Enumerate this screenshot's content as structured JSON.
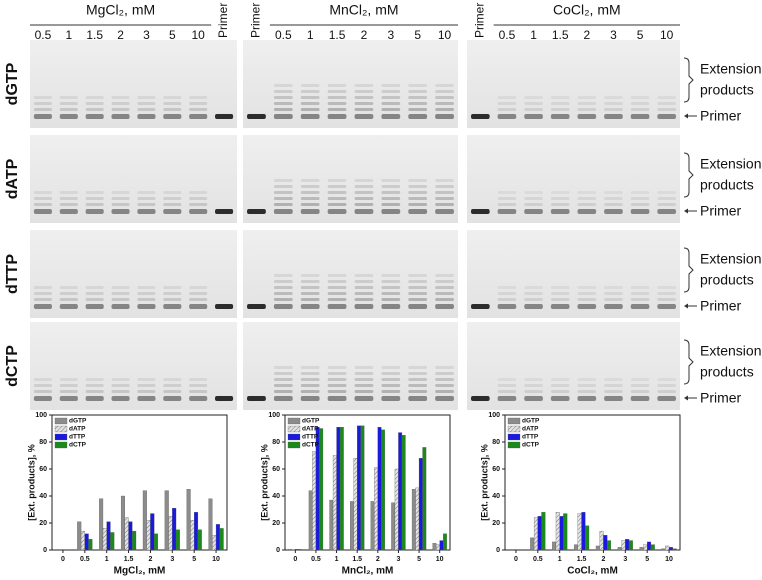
{
  "gels": {
    "columns": [
      {
        "title": "MgCl₂, mM",
        "lanes": [
          "0.5",
          "1",
          "1.5",
          "2",
          "3",
          "5",
          "10",
          "Primer"
        ]
      },
      {
        "title": "MnCl₂, mM",
        "lanes": [
          "Primer",
          "0.5",
          "1",
          "1.5",
          "2",
          "3",
          "5",
          "10"
        ]
      },
      {
        "title": "CoCl₂, mM",
        "lanes": [
          "Primer",
          "0.5",
          "1",
          "1.5",
          "2",
          "3",
          "5",
          "10"
        ]
      }
    ],
    "rows": [
      "dGTP",
      "dATP",
      "dTTP",
      "dCTP"
    ],
    "extension_label": [
      "Extension",
      "products"
    ],
    "primer_label": "Primer"
  },
  "chart_data": [
    {
      "type": "bar",
      "xlabel": "MgCl₂, mM",
      "ylabel": "[Ext. products], %",
      "categories": [
        "0",
        "0.5",
        "1",
        "1.5",
        "2",
        "3",
        "5",
        "10"
      ],
      "ylim": [
        0,
        100
      ],
      "yticks": [
        0,
        20,
        40,
        60,
        80,
        100
      ],
      "series": [
        {
          "name": "dGTP",
          "color": "#8c8c8c",
          "values": [
            0,
            21,
            38,
            40,
            44,
            44,
            45,
            38
          ]
        },
        {
          "name": "dATP",
          "color": "#cfcfcf",
          "hatch": true,
          "values": [
            0,
            14,
            16,
            24,
            22,
            25,
            22,
            11
          ]
        },
        {
          "name": "dTTP",
          "color": "#1a1adf",
          "values": [
            0,
            12,
            21,
            21,
            27,
            31,
            28,
            19
          ]
        },
        {
          "name": "dCTP",
          "color": "#1a8a1a",
          "values": [
            0,
            8,
            13,
            14,
            12,
            15,
            15,
            16
          ]
        }
      ]
    },
    {
      "type": "bar",
      "xlabel": "MnCl₂, mM",
      "ylabel": "[Ext. products], %",
      "categories": [
        "0",
        "0.5",
        "1",
        "1.5",
        "2",
        "3",
        "5",
        "10"
      ],
      "ylim": [
        0,
        100
      ],
      "yticks": [
        0,
        20,
        40,
        60,
        80,
        100
      ],
      "series": [
        {
          "name": "dGTP",
          "color": "#8c8c8c",
          "values": [
            0.5,
            44,
            37,
            36,
            36,
            35,
            45,
            5
          ]
        },
        {
          "name": "dATP",
          "color": "#cfcfcf",
          "hatch": true,
          "values": [
            0.5,
            73,
            70,
            68,
            61,
            60,
            46,
            4
          ]
        },
        {
          "name": "dTTP",
          "color": "#1a1adf",
          "values": [
            0.5,
            91,
            91,
            92,
            91,
            87,
            68,
            7
          ]
        },
        {
          "name": "dCTP",
          "color": "#1a8a1a",
          "values": [
            0.5,
            90,
            91,
            92,
            89,
            85,
            76,
            12
          ]
        }
      ]
    },
    {
      "type": "bar",
      "xlabel": "CoCl₂, mM",
      "ylabel": "[Ext. products], %",
      "categories": [
        "0",
        "0.5",
        "1",
        "1.5",
        "2",
        "3",
        "5",
        "10"
      ],
      "ylim": [
        0,
        100
      ],
      "yticks": [
        0,
        20,
        40,
        60,
        80,
        100
      ],
      "series": [
        {
          "name": "dGTP",
          "color": "#8c8c8c",
          "values": [
            0,
            9,
            6,
            4,
            3,
            2,
            2,
            1
          ]
        },
        {
          "name": "dATP",
          "color": "#cfcfcf",
          "hatch": true,
          "values": [
            0,
            24,
            28,
            27,
            14,
            7,
            4,
            3
          ]
        },
        {
          "name": "dTTP",
          "color": "#1a1adf",
          "values": [
            0,
            25,
            25,
            28,
            11,
            8,
            6,
            2
          ]
        },
        {
          "name": "dCTP",
          "color": "#1a8a1a",
          "values": [
            0,
            28,
            27,
            18,
            7,
            7,
            4,
            1
          ]
        }
      ]
    }
  ]
}
